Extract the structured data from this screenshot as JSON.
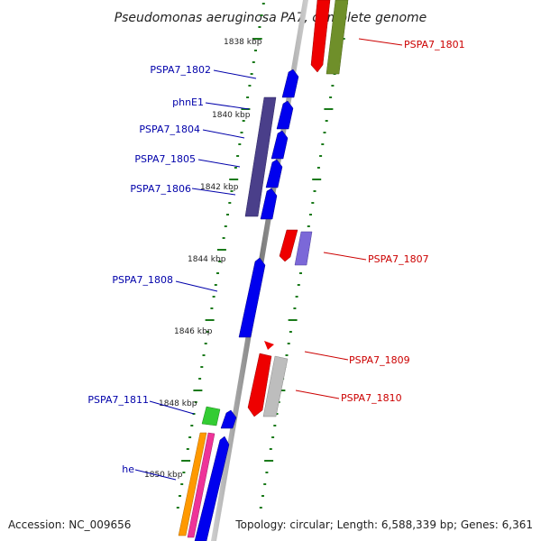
{
  "title": "Pseudomonas aeruginosa PA7, complete genome",
  "footer": {
    "accession": "Accession: NC_009656",
    "summary": "Topology: circular; Length: 6,588,339 bp; Genes: 6,361"
  },
  "colors": {
    "backbone": "#8a8a8a",
    "tick": "#1a7a1a",
    "plus_label": "#cc0000",
    "minus_label": "#0000aa",
    "blue": "#0000ee",
    "darkblue": "#4a3f8a",
    "red": "#ee0000",
    "olive": "#6f8f2a",
    "purple": "#7b68d8",
    "silver": "#bdbdbd",
    "green": "#33cc33",
    "orange": "#ff9900",
    "magenta": "#ee3399"
  },
  "scale_labels": [
    "1838 kbp",
    "1840 kbp",
    "1842 kbp",
    "1844 kbp",
    "1846 kbp",
    "1848 kbp",
    "1850 kbp"
  ],
  "genes_left": [
    {
      "label": "PSPA7_1802"
    },
    {
      "label": "phnE1"
    },
    {
      "label": "PSPA7_1804"
    },
    {
      "label": "PSPA7_1805"
    },
    {
      "label": "PSPA7_1806"
    },
    {
      "label": "PSPA7_1808"
    },
    {
      "label": "PSPA7_1811"
    },
    {
      "label": "he"
    }
  ],
  "genes_right": [
    {
      "label": "PSPA7_1801"
    },
    {
      "label": "PSPA7_1807"
    },
    {
      "label": "PSPA7_1809"
    },
    {
      "label": "PSPA7_1810"
    }
  ]
}
